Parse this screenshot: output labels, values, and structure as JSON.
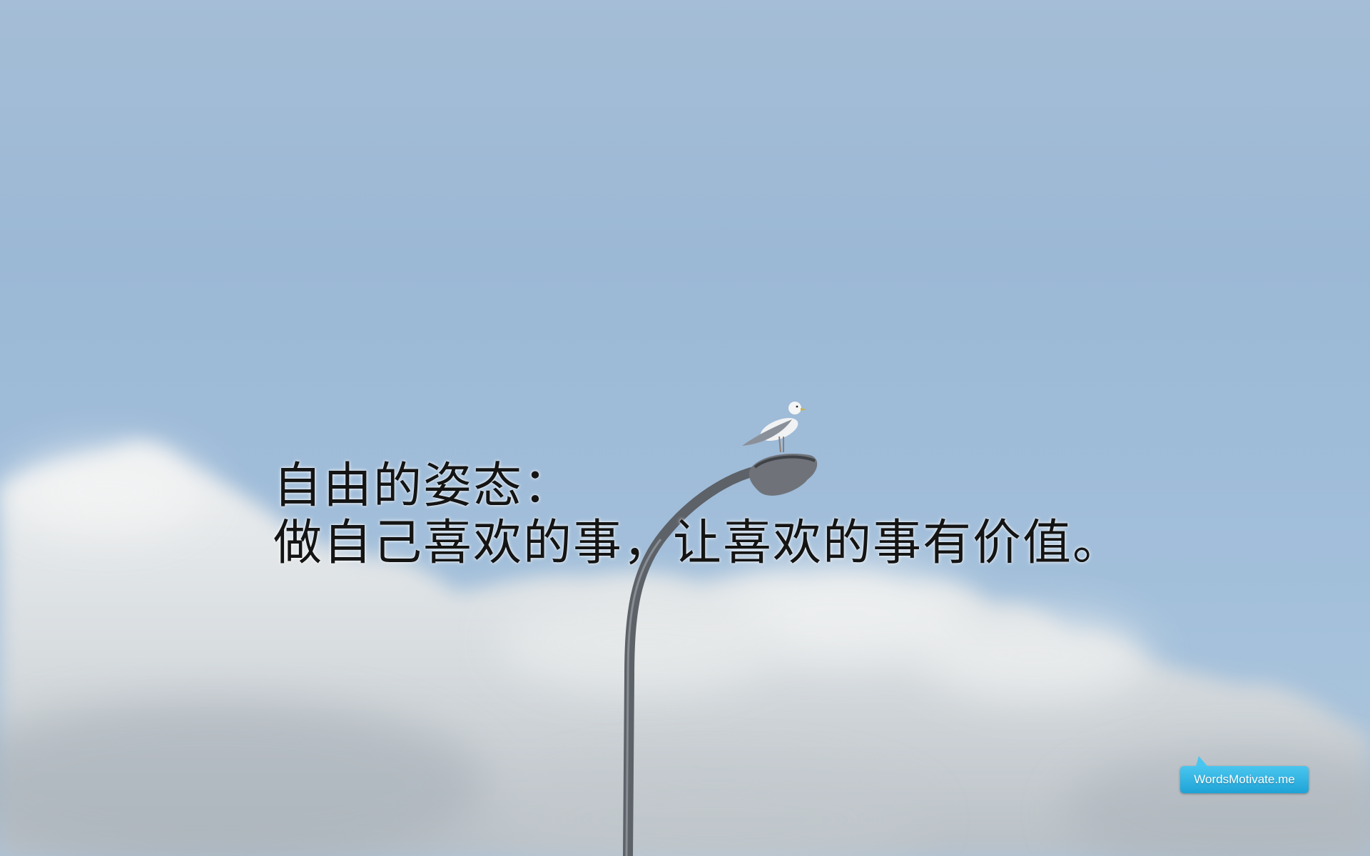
{
  "quote": {
    "line1": "自由的姿态：",
    "line2": "做自己喜欢的事，让喜欢的事有价值。"
  },
  "watermark": {
    "label": "WordsMotivate.me"
  },
  "colors": {
    "sky": "#9ebad8",
    "cloud": "#e6e9ea",
    "text": "#141414",
    "badge": "#1ea3d6"
  }
}
